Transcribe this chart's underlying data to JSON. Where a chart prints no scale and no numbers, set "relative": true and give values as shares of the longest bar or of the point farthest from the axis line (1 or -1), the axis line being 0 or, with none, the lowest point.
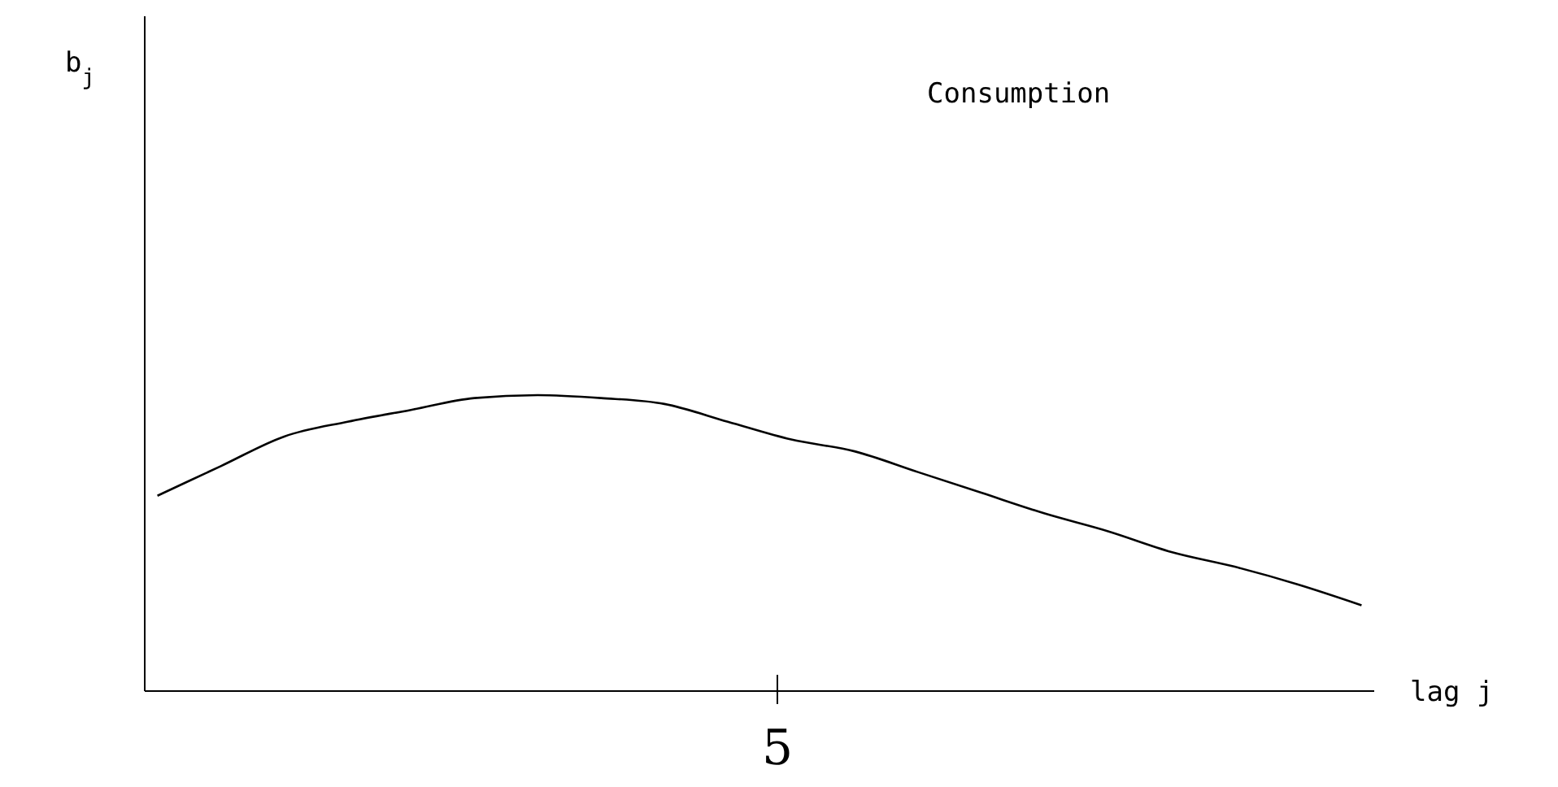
{
  "chart_data": {
    "type": "line",
    "relative": true,
    "xlabel": "lag j",
    "annotations": [
      "b$_{j}$",
      "Consumption",
      "5"
    ],
    "categories": [
      null,
      null,
      null,
      null,
      null,
      null,
      null,
      null,
      null,
      null,
      null,
      null,
      null,
      null,
      null,
      null,
      null,
      null,
      null,
      null
    ],
    "series": [
      {
        "color": "#000000",
        "values": [
          0.66,
          0.76,
          0.86,
          0.91,
          0.95,
          0.99,
          1.0,
          0.99,
          0.97,
          0.91,
          0.85,
          0.81,
          0.74,
          0.67,
          0.6,
          0.54,
          0.47,
          0.42,
          0.36,
          0.29
        ]
      }
    ],
    "grid": false,
    "legend": false,
    "marker": "none",
    "line_style": "solid"
  }
}
